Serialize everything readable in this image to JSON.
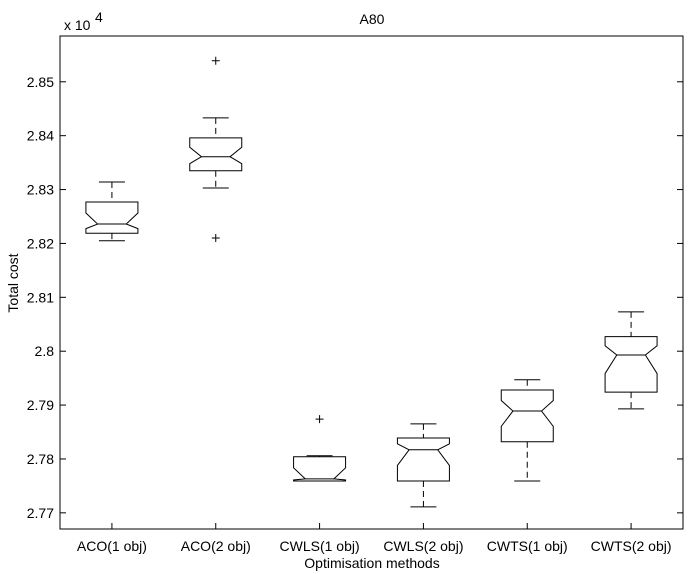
{
  "chart_data": {
    "type": "box",
    "title": "A80",
    "x_label": "Optimisation methods",
    "y_label": "Total cost",
    "scale_label": "x 10",
    "scale_exponent": "4",
    "categories": [
      "ACO(1 obj)",
      "ACO(2 obj)",
      "CWLS(1 obj)",
      "CWLS(2 obj)",
      "CWTS(1 obj)",
      "CWTS(2 obj)"
    ],
    "whisker_low": [
      2.8205,
      2.8303,
      2.7759,
      2.7711,
      2.7759,
      2.7893
    ],
    "q1": [
      2.8219,
      2.8335,
      2.7759,
      2.7759,
      2.7832,
      2.7924
    ],
    "median": [
      2.8236,
      2.8361,
      2.7763,
      2.7817,
      2.7889,
      2.7993
    ],
    "q3": [
      2.8277,
      2.8396,
      2.7804,
      2.7839,
      2.7928,
      2.8027
    ],
    "whisker_high": [
      2.8314,
      2.8433,
      2.7806,
      2.7865,
      2.7947,
      2.8073
    ],
    "outliers": [
      [],
      [
        2.8539,
        2.821
      ],
      [
        2.7874
      ],
      [],
      [],
      []
    ],
    "color": "#000000",
    "ylim": [
      2.767,
      2.8585
    ],
    "yticks": [
      2.77,
      2.78,
      2.79,
      2.8,
      2.81,
      2.82,
      2.83,
      2.84,
      2.85
    ]
  }
}
